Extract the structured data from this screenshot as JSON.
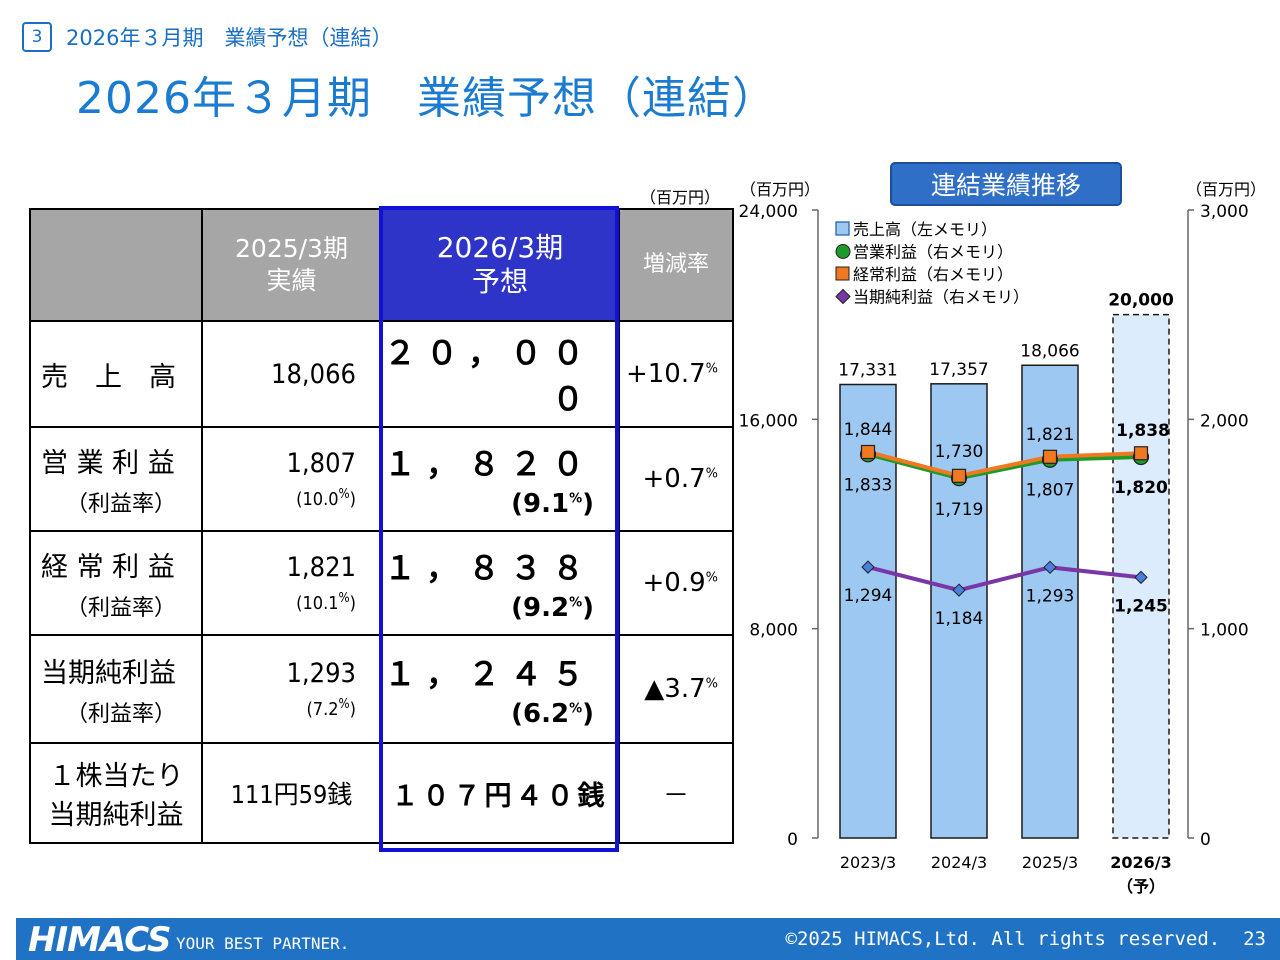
{
  "header": {
    "section_number": "3",
    "breadcrumb": "2026年３月期　業績予想（連結）",
    "title": "2026年３月期　業績予想（連結）"
  },
  "table": {
    "unit": "（百万円）",
    "col_prev": [
      "2025/3期",
      "実績"
    ],
    "col_forecast": [
      "2026/3期",
      "予想"
    ],
    "col_change": "増減率",
    "rows": [
      {
        "label": "売　上　高",
        "sub": "",
        "prev": "18,066",
        "prev_rate": "",
        "forecast": "２０，０００",
        "forecast_rate": "",
        "change": "+10.7"
      },
      {
        "label": "営 業 利 益",
        "sub": "（利益率）",
        "prev": "1,807",
        "prev_rate": "(10.0",
        "forecast": "１，８２０",
        "forecast_rate": "(9.1",
        "change": "+0.7"
      },
      {
        "label": "経 常 利 益",
        "sub": "（利益率）",
        "prev": "1,821",
        "prev_rate": "(10.1",
        "forecast": "１，８３８",
        "forecast_rate": "(9.2",
        "change": "+0.9"
      },
      {
        "label": "当期純利益",
        "sub": "（利益率）",
        "prev": "1,293",
        "prev_rate": "(7.2",
        "forecast": "１，２４５",
        "forecast_rate": "(6.2",
        "change": "▲3.7"
      },
      {
        "label": "１株当たり",
        "sub": "当期純利益",
        "prev": "111円59銭",
        "prev_rate": "",
        "forecast": "１０７円４０銭",
        "forecast_rate": "",
        "change": "－"
      }
    ],
    "pct_sign": "%",
    "close_paren": ")"
  },
  "chart_title": "連結業績推移",
  "chart_data": {
    "type": "bar",
    "categories": [
      "2023/3",
      "2024/3",
      "2025/3",
      "2026/3"
    ],
    "category_note": "（予）",
    "left_unit": "（百万円）",
    "right_unit": "（百万円）",
    "left_ticks": [
      "0",
      "8,000",
      "16,000",
      "24,000"
    ],
    "right_ticks": [
      "0",
      "1,000",
      "2,000",
      "3,000"
    ],
    "ylim_left": [
      0,
      24000
    ],
    "ylim_right": [
      0,
      3000
    ],
    "legend_position": "top-left",
    "series": [
      {
        "name": "売上高（左メモリ）",
        "kind": "bar",
        "axis": "left",
        "color": "#9dc8f2",
        "values": [
          17331,
          17357,
          18066,
          20000
        ],
        "labels": [
          "17,331",
          "17,357",
          "18,066",
          "20,000"
        ]
      },
      {
        "name": "営業利益（右メモリ）",
        "kind": "line",
        "axis": "right",
        "color": "#f07820",
        "marker_color": "#1e9a2a",
        "values": [
          1833,
          1719,
          1807,
          1820
        ],
        "labels": [
          "1,833",
          "1,719",
          "1,807",
          "1,820"
        ]
      },
      {
        "name": "経常利益（右メモリ）",
        "kind": "line",
        "axis": "right",
        "color": "#f07820",
        "marker_color": "#f07820",
        "values": [
          1844,
          1730,
          1821,
          1838
        ],
        "labels": [
          "1,844",
          "1,730",
          "1,821",
          "1,838"
        ]
      },
      {
        "name": "当期純利益（右メモリ）",
        "kind": "line",
        "axis": "right",
        "color": "#7a35a6",
        "marker_color": "#4a7ee0",
        "values": [
          1294,
          1184,
          1293,
          1245
        ],
        "labels": [
          "1,294",
          "1,184",
          "1,293",
          "1,245"
        ]
      }
    ]
  },
  "footer": {
    "logo": "HIMACS",
    "tagline": "YOUR BEST PARTNER.",
    "copyright": "©2025 HIMACS,Ltd. All rights reserved.",
    "page": "23"
  }
}
